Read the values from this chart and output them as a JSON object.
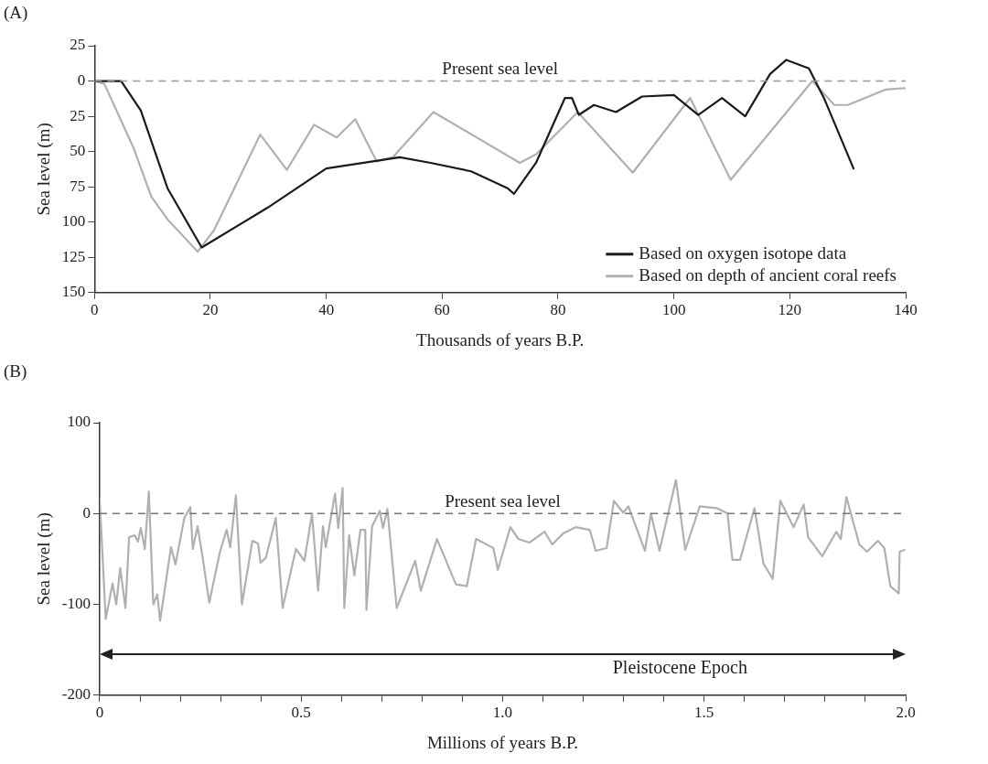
{
  "chart_data": [
    {
      "type": "line",
      "annotations": [
        "(A)"
      ],
      "xlabel": "Thousands of years B.P.",
      "ylabel": "Sea level (m)",
      "xlim": [
        0,
        140
      ],
      "xticks": [
        0,
        20,
        40,
        60,
        80,
        100,
        120,
        140
      ],
      "ylim": [
        -150,
        25
      ],
      "yticks": [
        25,
        0,
        {
          "value": -25,
          "label": "25"
        },
        {
          "value": -50,
          "label": "50"
        },
        {
          "value": -75,
          "label": "75"
        },
        {
          "value": -100,
          "label": "100"
        },
        {
          "value": -125,
          "label": "125"
        },
        {
          "value": -150,
          "label": "150"
        }
      ],
      "grid": false,
      "legend": "bottom right",
      "marker": "none",
      "ref_lines": [
        {
          "axis": "y",
          "value": 0,
          "label": "Present sea level",
          "line_style": "dashed",
          "color": "#999999"
        }
      ],
      "series": [
        {
          "name": "Based on oxygen isotope data",
          "color": "#1a1a1a",
          "x": [
            0,
            4.6,
            8,
            12.6,
            18.5,
            29.8,
            40,
            52.7,
            58,
            65,
            71.3,
            72.4,
            76.2,
            81.2,
            82.4,
            83.6,
            86.2,
            90,
            94.5,
            100,
            104.2,
            108.3,
            112.3,
            116.6,
            119.4,
            123.3,
            126,
            131
          ],
          "values": [
            0,
            0,
            -21,
            -76,
            -118,
            -90,
            -62,
            -54,
            -58,
            -64,
            -76,
            -80,
            -58,
            -12,
            -12,
            -24,
            -17,
            -22,
            -11,
            -10,
            -24,
            -12,
            -25,
            5,
            15,
            9,
            -13,
            -62
          ]
        },
        {
          "name": "Based on depth of ancient coral reefs",
          "color": "#b0b0b0",
          "x": [
            0,
            1.7,
            6.8,
            9.8,
            12.6,
            17.8,
            20.6,
            28.6,
            33.2,
            37.9,
            41.8,
            45,
            48.7,
            51.5,
            58.5,
            73.4,
            76.2,
            83.4,
            92.9,
            102.8,
            109.8,
            123.9,
            127.7,
            130,
            136.6,
            140
          ],
          "values": [
            0,
            -2,
            -48,
            -82,
            -98,
            -121,
            -106,
            -38,
            -63,
            -31,
            -40,
            -27,
            -57,
            -54,
            -22,
            -58,
            -52,
            -22,
            -65,
            -12,
            -70,
            0,
            -17,
            -17,
            -6,
            -5
          ]
        }
      ]
    },
    {
      "type": "line",
      "annotations": [
        "(B)",
        "Pleistocene Epoch"
      ],
      "xlabel": "Millions of years B.P.",
      "ylabel": "Sea level (m)",
      "xlim": [
        0,
        2.0
      ],
      "xticks": [
        0,
        {
          "value": 0.1,
          "label": null
        },
        {
          "value": 0.2,
          "label": null
        },
        {
          "value": 0.3,
          "label": null
        },
        {
          "value": 0.4,
          "label": null
        },
        0.5,
        {
          "value": 0.6,
          "label": null
        },
        {
          "value": 0.7,
          "label": null
        },
        {
          "value": 0.8,
          "label": null
        },
        {
          "value": 0.9,
          "label": null
        },
        {
          "value": 1.0,
          "label": "1.0"
        },
        {
          "value": 1.1,
          "label": null
        },
        {
          "value": 1.2,
          "label": null
        },
        {
          "value": 1.3,
          "label": null
        },
        {
          "value": 1.4,
          "label": null
        },
        1.5,
        {
          "value": 1.6,
          "label": null
        },
        {
          "value": 1.7,
          "label": null
        },
        {
          "value": 1.8,
          "label": null
        },
        {
          "value": 1.9,
          "label": null
        },
        {
          "value": 2.0,
          "label": "2.0"
        }
      ],
      "ylim": [
        -200,
        100
      ],
      "yticks": [
        100,
        0,
        -100,
        -200
      ],
      "grid": false,
      "legend": false,
      "marker": "none",
      "ref_lines": [
        {
          "axis": "y",
          "value": 0,
          "label": "Present sea level",
          "line_style": "dashed",
          "color": "#777777"
        }
      ],
      "series": [
        {
          "color": "#b0b0b0",
          "x": [
            0,
            0.015,
            0.022,
            0.032,
            0.041,
            0.051,
            0.064,
            0.073,
            0.087,
            0.095,
            0.102,
            0.112,
            0.122,
            0.133,
            0.143,
            0.15,
            0.177,
            0.188,
            0.21,
            0.225,
            0.231,
            0.243,
            0.255,
            0.272,
            0.298,
            0.315,
            0.324,
            0.338,
            0.353,
            0.379,
            0.393,
            0.399,
            0.412,
            0.437,
            0.454,
            0.487,
            0.508,
            0.527,
            0.542,
            0.554,
            0.561,
            0.584,
            0.592,
            0.603,
            0.607,
            0.619,
            0.632,
            0.647,
            0.659,
            0.662,
            0.676,
            0.695,
            0.703,
            0.714,
            0.737,
            0.783,
            0.797,
            0.837,
            0.884,
            0.911,
            0.934,
            0.977,
            0.988,
            1.019,
            1.039,
            1.066,
            1.104,
            1.123,
            1.15,
            1.181,
            1.216,
            1.231,
            1.258,
            1.276,
            1.299,
            1.312,
            1.353,
            1.368,
            1.389,
            1.43,
            1.453,
            1.489,
            1.531,
            1.558,
            1.57,
            1.589,
            1.625,
            1.647,
            1.67,
            1.689,
            1.722,
            1.747,
            1.758,
            1.793,
            1.828,
            1.839,
            1.853,
            1.885,
            1.904,
            1.931,
            1.947,
            1.962,
            1.983,
            1.985,
            1.997
          ],
          "values": [
            16,
            -116,
            -100,
            -77,
            -100,
            -60,
            -104,
            -26,
            -24,
            -31,
            -16,
            -39,
            24,
            -100,
            -89,
            -118,
            -37,
            -56,
            -5,
            7,
            -39,
            -14,
            -47,
            -98,
            -43,
            -18,
            -37,
            20,
            -100,
            -30,
            -33,
            -54,
            -49,
            -5,
            -104,
            -39,
            -52,
            0,
            -85,
            -14,
            -37,
            22,
            -16,
            28,
            -104,
            -24,
            -68,
            -18,
            -18,
            -106,
            -14,
            3,
            -16,
            5,
            -104,
            -52,
            -85,
            -28,
            -78,
            -80,
            -28,
            -38,
            -62,
            -15,
            -28,
            -32,
            -20,
            -34,
            -22,
            -15,
            -18,
            -41,
            -38,
            14,
            1,
            8,
            -41,
            0,
            -41,
            37,
            -40,
            8,
            6,
            0,
            -51,
            -51,
            6,
            -55,
            -72,
            14,
            -15,
            10,
            -26,
            -47,
            -20,
            -28,
            18,
            -34,
            -42,
            -30,
            -38,
            -80,
            -88,
            -42,
            -40
          ]
        }
      ]
    }
  ]
}
